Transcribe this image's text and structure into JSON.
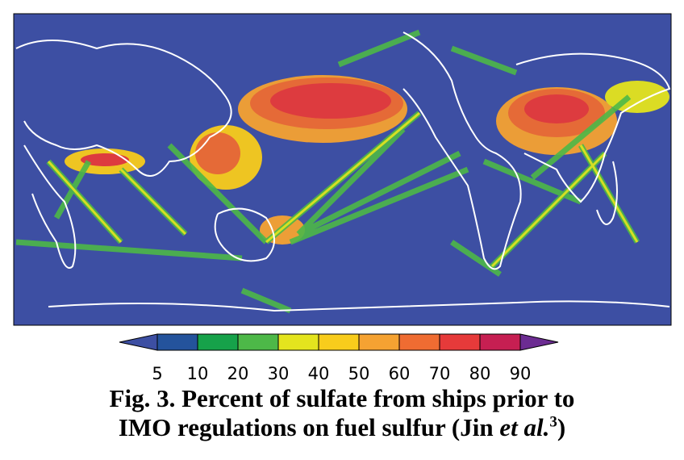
{
  "colorbar": {
    "ticks": [
      5,
      10,
      20,
      30,
      40,
      50,
      60,
      70,
      80,
      90
    ],
    "colors": [
      "#24539c",
      "#16a24a",
      "#4db848",
      "#e4e41e",
      "#f8cc1c",
      "#f5a232",
      "#ef6c32",
      "#e63a3a",
      "#c61f52"
    ],
    "under_color": "#3d4fa3",
    "over_color": "#6c2c92"
  },
  "caption": {
    "line1": "Fig. 3. Percent of sulfate from ships prior to",
    "line2": "IMO regulations on fuel sulfur (Jin ",
    "italic": "et al.",
    "reference": "3",
    "closing": ")"
  }
}
